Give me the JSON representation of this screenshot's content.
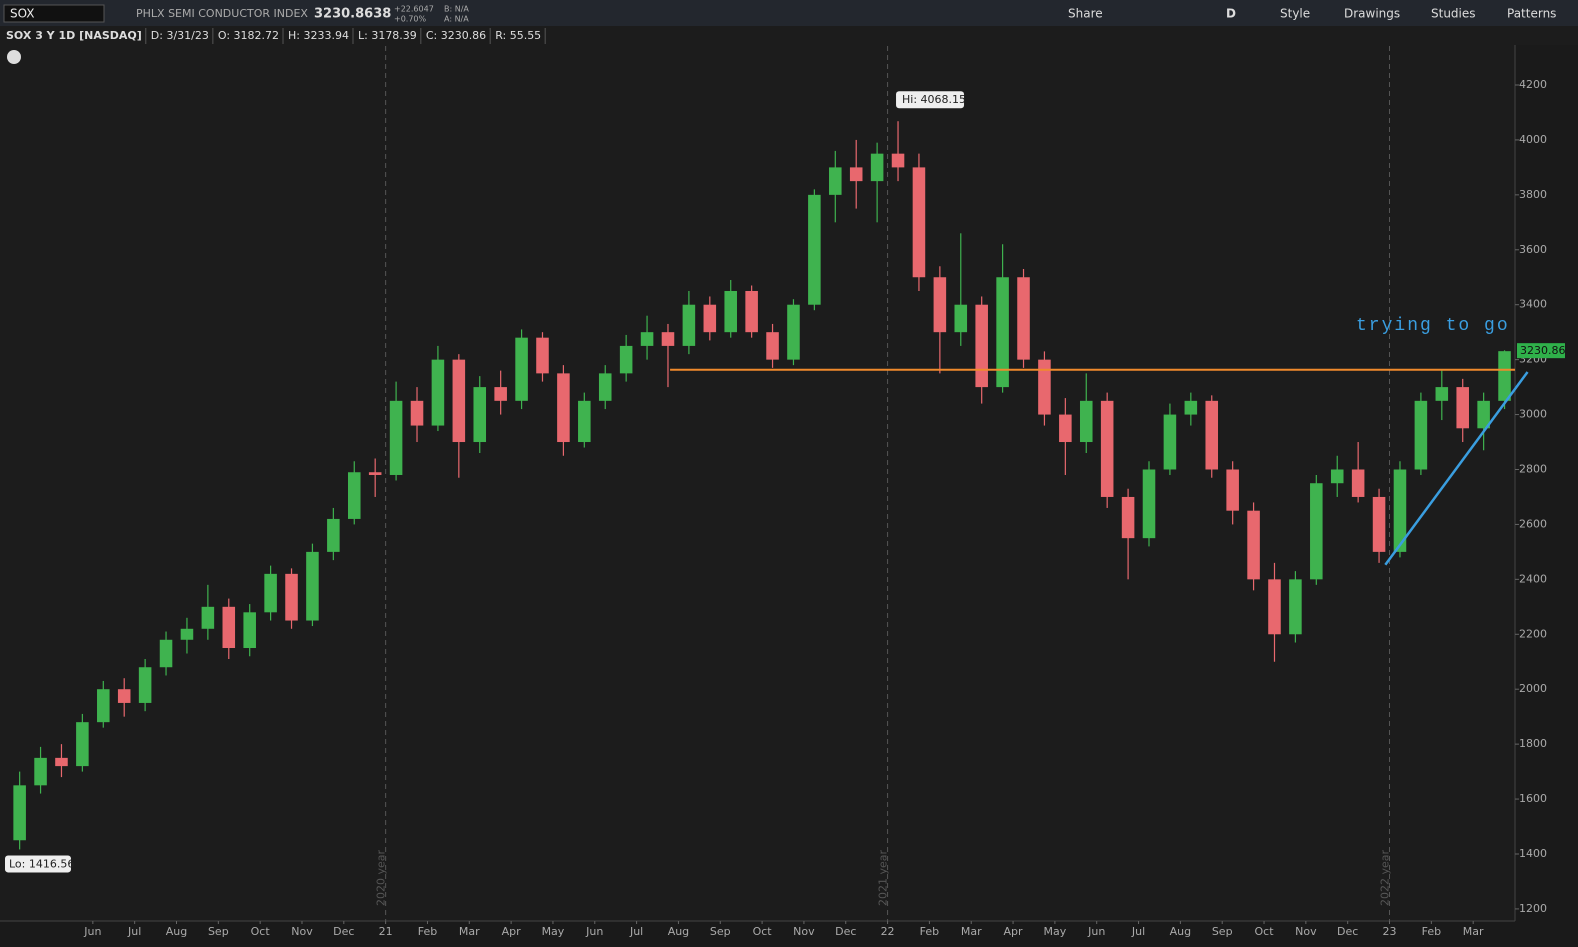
{
  "toolbar": {
    "symbol": "SOX",
    "name": "PHLX SEMI CONDUCTOR INDEX",
    "last": "3230.8638",
    "change": "+22.6047",
    "change_pct": "+0.70%",
    "bid": "B: N/A",
    "ask": "A: N/A",
    "buttons": [
      "Share",
      "D",
      "Style",
      "Drawings",
      "Studies",
      "Patterns"
    ]
  },
  "legend": [
    "SOX 3 Y 1D [NASDAQ]",
    "D: 3/31/23",
    "O: 3182.72",
    "H: 3233.94",
    "L: 3178.39",
    "C: 3230.86",
    "R: 55.55"
  ],
  "chart_data": {
    "type": "candlestick",
    "up_color": "#3fb34f",
    "down_color": "#e8686e",
    "xlim": [
      -0.1,
      36.0
    ],
    "ylim": [
      1156,
      4342
    ],
    "yticks": [
      1200,
      1400,
      1600,
      1800,
      2000,
      2200,
      2400,
      2600,
      2800,
      3000,
      3200,
      3400,
      3600,
      3800,
      4000,
      4200
    ],
    "xticks": [
      {
        "value": 2,
        "label": "Jun"
      },
      {
        "value": 3,
        "label": "Jul"
      },
      {
        "value": 4,
        "label": "Aug"
      },
      {
        "value": 5,
        "label": "Sep"
      },
      {
        "value": 6,
        "label": "Oct"
      },
      {
        "value": 7,
        "label": "Nov"
      },
      {
        "value": 8,
        "label": "Dec"
      },
      {
        "value": 9,
        "label": "21"
      },
      {
        "value": 10,
        "label": "Feb"
      },
      {
        "value": 11,
        "label": "Mar"
      },
      {
        "value": 12,
        "label": "Apr"
      },
      {
        "value": 13,
        "label": "May"
      },
      {
        "value": 14,
        "label": "Jun"
      },
      {
        "value": 15,
        "label": "Jul"
      },
      {
        "value": 16,
        "label": "Aug"
      },
      {
        "value": 17,
        "label": "Sep"
      },
      {
        "value": 18,
        "label": "Oct"
      },
      {
        "value": 19,
        "label": "Nov"
      },
      {
        "value": 20,
        "label": "Dec"
      },
      {
        "value": 21,
        "label": "22"
      },
      {
        "value": 22,
        "label": "Feb"
      },
      {
        "value": 23,
        "label": "Mar"
      },
      {
        "value": 24,
        "label": "Apr"
      },
      {
        "value": 25,
        "label": "May"
      },
      {
        "value": 26,
        "label": "Jun"
      },
      {
        "value": 27,
        "label": "Jul"
      },
      {
        "value": 28,
        "label": "Aug"
      },
      {
        "value": 29,
        "label": "Sep"
      },
      {
        "value": 30,
        "label": "Oct"
      },
      {
        "value": 31,
        "label": "Nov"
      },
      {
        "value": 32,
        "label": "Dec"
      },
      {
        "value": 33,
        "label": "23"
      },
      {
        "value": 34,
        "label": "Feb"
      },
      {
        "value": 35,
        "label": "Mar"
      }
    ],
    "year_lines": [
      {
        "value": 9,
        "label": "2020 year"
      },
      {
        "value": 21,
        "label": "2021 year"
      },
      {
        "value": 33,
        "label": "2022 year"
      }
    ],
    "x": [
      0.25,
      0.75,
      1.25,
      1.75,
      2.25,
      2.75,
      3.25,
      3.75,
      4.25,
      4.75,
      5.25,
      5.75,
      6.25,
      6.75,
      7.25,
      7.75,
      8.25,
      8.75,
      9.25,
      9.75,
      10.25,
      10.75,
      11.25,
      11.75,
      12.25,
      12.75,
      13.25,
      13.75,
      14.25,
      14.75,
      15.25,
      15.75,
      16.25,
      16.75,
      17.25,
      17.75,
      18.25,
      18.75,
      19.25,
      19.75,
      20.25,
      20.75,
      21.25,
      21.75,
      22.25,
      22.75,
      23.25,
      23.75,
      24.25,
      24.75,
      25.25,
      25.75,
      26.25,
      26.75,
      27.25,
      27.75,
      28.25,
      28.75,
      29.25,
      29.75,
      30.25,
      30.75,
      31.25,
      31.75,
      32.25,
      32.75,
      33.25,
      33.75,
      34.25,
      34.75,
      35.25,
      35.75
    ],
    "candles": [
      [
        1450,
        1700,
        1416.56,
        1650
      ],
      [
        1650,
        1790,
        1620,
        1750
      ],
      [
        1750,
        1800,
        1680,
        1720
      ],
      [
        1720,
        1910,
        1700,
        1880
      ],
      [
        1880,
        2030,
        1860,
        2000
      ],
      [
        2000,
        2040,
        1900,
        1950
      ],
      [
        1950,
        2110,
        1920,
        2080
      ],
      [
        2080,
        2210,
        2050,
        2180
      ],
      [
        2180,
        2260,
        2130,
        2220
      ],
      [
        2220,
        2380,
        2180,
        2300
      ],
      [
        2300,
        2330,
        2110,
        2150
      ],
      [
        2150,
        2310,
        2120,
        2280
      ],
      [
        2280,
        2450,
        2250,
        2420
      ],
      [
        2420,
        2440,
        2220,
        2250
      ],
      [
        2250,
        2530,
        2230,
        2500
      ],
      [
        2500,
        2660,
        2470,
        2620
      ],
      [
        2620,
        2830,
        2600,
        2790
      ],
      [
        2790,
        2840,
        2700,
        2780
      ],
      [
        2780,
        3120,
        2760,
        3050
      ],
      [
        3050,
        3100,
        2900,
        2960
      ],
      [
        2960,
        3250,
        2940,
        3200
      ],
      [
        3200,
        3220,
        2770,
        2900
      ],
      [
        2900,
        3140,
        2860,
        3100
      ],
      [
        3100,
        3160,
        3000,
        3050
      ],
      [
        3050,
        3310,
        3020,
        3280
      ],
      [
        3280,
        3300,
        3120,
        3150
      ],
      [
        3150,
        3180,
        2850,
        2900
      ],
      [
        2900,
        3080,
        2880,
        3050
      ],
      [
        3050,
        3180,
        3020,
        3150
      ],
      [
        3150,
        3290,
        3120,
        3250
      ],
      [
        3250,
        3360,
        3200,
        3300
      ],
      [
        3300,
        3330,
        3100,
        3250
      ],
      [
        3250,
        3450,
        3220,
        3400
      ],
      [
        3400,
        3430,
        3270,
        3300
      ],
      [
        3300,
        3490,
        3280,
        3450
      ],
      [
        3450,
        3470,
        3280,
        3300
      ],
      [
        3300,
        3330,
        3170,
        3200
      ],
      [
        3200,
        3420,
        3180,
        3400
      ],
      [
        3400,
        3820,
        3380,
        3800
      ],
      [
        3800,
        3960,
        3700,
        3900
      ],
      [
        3900,
        4000,
        3750,
        3850
      ],
      [
        3850,
        3990,
        3700,
        3950
      ],
      [
        3950,
        4068.15,
        3850,
        3900
      ],
      [
        3900,
        3950,
        3450,
        3500
      ],
      [
        3500,
        3540,
        3150,
        3300
      ],
      [
        3300,
        3660,
        3250,
        3400
      ],
      [
        3400,
        3430,
        3040,
        3100
      ],
      [
        3100,
        3620,
        3080,
        3500
      ],
      [
        3500,
        3530,
        3170,
        3200
      ],
      [
        3200,
        3230,
        2960,
        3000
      ],
      [
        3000,
        3060,
        2780,
        2900
      ],
      [
        2900,
        3150,
        2860,
        3050
      ],
      [
        3050,
        3080,
        2660,
        2700
      ],
      [
        2700,
        2730,
        2400,
        2550
      ],
      [
        2550,
        2830,
        2520,
        2800
      ],
      [
        2800,
        3040,
        2780,
        3000
      ],
      [
        3000,
        3080,
        2960,
        3050
      ],
      [
        3050,
        3070,
        2770,
        2800
      ],
      [
        2800,
        2830,
        2600,
        2650
      ],
      [
        2650,
        2680,
        2360,
        2400
      ],
      [
        2400,
        2460,
        2100,
        2200
      ],
      [
        2200,
        2430,
        2170,
        2400
      ],
      [
        2400,
        2780,
        2380,
        2750
      ],
      [
        2750,
        2850,
        2700,
        2800
      ],
      [
        2800,
        2900,
        2680,
        2700
      ],
      [
        2700,
        2730,
        2460,
        2500
      ],
      [
        2500,
        2830,
        2480,
        2800
      ],
      [
        2800,
        3080,
        2780,
        3050
      ],
      [
        3050,
        3160,
        2980,
        3100
      ],
      [
        3100,
        3130,
        2900,
        2950
      ],
      [
        2950,
        3080,
        2870,
        3050
      ],
      [
        3050,
        3233.94,
        3020,
        3230.86
      ]
    ],
    "hi_label": "Hi: 4068.15",
    "lo_label": "Lo: 1416.56",
    "hline": {
      "value": 3163,
      "x_start": 15.8,
      "color": "#f08a2c"
    },
    "trendline": {
      "x": [
        32.9,
        36.3
      ],
      "y": [
        2453,
        3155
      ],
      "color": "#3a9ee0"
    },
    "note": "trying to go"
  }
}
